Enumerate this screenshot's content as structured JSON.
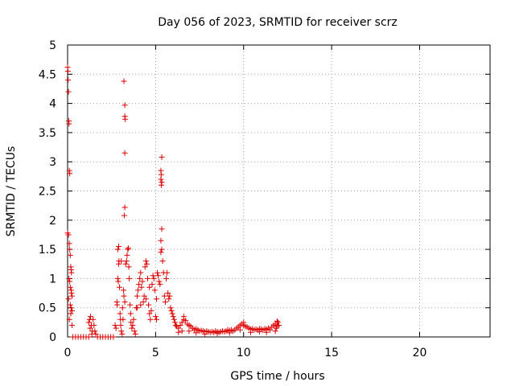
{
  "chart_data": {
    "type": "scatter",
    "title": "Day 056 of 2023, SRMTID for receiver scrz",
    "xlabel": "GPS time / hours",
    "ylabel": "SRMTID / TECUs",
    "xlim": [
      0,
      24
    ],
    "ylim": [
      0,
      5
    ],
    "xticks": [
      0,
      5,
      10,
      15,
      20
    ],
    "xtick_labels": [
      "0",
      "5",
      "10",
      "15",
      "20"
    ],
    "yticks": [
      0,
      0.5,
      1,
      1.5,
      2,
      2.5,
      3,
      3.5,
      4,
      4.5,
      5
    ],
    "ytick_labels": [
      "0",
      "0.5",
      "1",
      "1.5",
      "2",
      "2.5",
      "3",
      "3.5",
      "4",
      "4.5",
      "5"
    ],
    "grid": true,
    "marker": "+",
    "color": "#dd0000",
    "series": [
      {
        "name": "scrz",
        "points": [
          [
            0.0,
            4.62
          ],
          [
            0.02,
            4.55
          ],
          [
            0.03,
            4.4
          ],
          [
            0.05,
            4.2
          ],
          [
            0.07,
            3.7
          ],
          [
            0.08,
            3.65
          ],
          [
            0.1,
            2.85
          ],
          [
            0.12,
            2.8
          ],
          [
            0.0,
            1.78
          ],
          [
            0.05,
            1.75
          ],
          [
            0.1,
            1.6
          ],
          [
            0.12,
            1.5
          ],
          [
            0.15,
            1.4
          ],
          [
            0.18,
            1.2
          ],
          [
            0.2,
            1.15
          ],
          [
            0.22,
            1.1
          ],
          [
            0.08,
            1.0
          ],
          [
            0.12,
            0.95
          ],
          [
            0.15,
            0.85
          ],
          [
            0.2,
            0.8
          ],
          [
            0.22,
            0.75
          ],
          [
            0.25,
            0.7
          ],
          [
            0.05,
            0.65
          ],
          [
            0.15,
            0.55
          ],
          [
            0.2,
            0.5
          ],
          [
            0.25,
            0.45
          ],
          [
            0.18,
            0.4
          ],
          [
            0.25,
            0.2
          ],
          [
            0.1,
            0.3
          ],
          [
            0.3,
            0.0
          ],
          [
            0.45,
            0.0
          ],
          [
            0.6,
            0.0
          ],
          [
            0.75,
            0.0
          ],
          [
            0.9,
            0.0
          ],
          [
            1.05,
            0.0
          ],
          [
            1.2,
            0.0
          ],
          [
            1.2,
            0.25
          ],
          [
            1.25,
            0.3
          ],
          [
            1.3,
            0.35
          ],
          [
            1.28,
            0.15
          ],
          [
            1.35,
            0.2
          ],
          [
            1.4,
            0.1
          ],
          [
            1.45,
            0.3
          ],
          [
            1.5,
            0.2
          ],
          [
            1.55,
            0.1
          ],
          [
            1.6,
            0.05
          ],
          [
            1.38,
            0.05
          ],
          [
            1.7,
            0.0
          ],
          [
            1.85,
            0.0
          ],
          [
            2.0,
            0.0
          ],
          [
            2.15,
            0.0
          ],
          [
            2.3,
            0.0
          ],
          [
            2.45,
            0.0
          ],
          [
            2.6,
            0.0
          ],
          [
            2.7,
            0.2
          ],
          [
            2.75,
            0.15
          ],
          [
            2.8,
            0.6
          ],
          [
            2.82,
            0.55
          ],
          [
            2.85,
            1.0
          ],
          [
            2.88,
            0.95
          ],
          [
            2.9,
            1.25
          ],
          [
            2.92,
            1.3
          ],
          [
            2.85,
            1.5
          ],
          [
            2.9,
            1.55
          ],
          [
            2.95,
            0.85
          ],
          [
            2.98,
            0.4
          ],
          [
            3.0,
            0.3
          ],
          [
            3.02,
            0.2
          ],
          [
            3.05,
            0.1
          ],
          [
            3.1,
            0.05
          ],
          [
            3.12,
            0.5
          ],
          [
            3.15,
            0.3
          ],
          [
            3.18,
            0.8
          ],
          [
            3.2,
            0.7
          ],
          [
            3.25,
            0.6
          ],
          [
            3.05,
            1.3
          ],
          [
            3.2,
            4.38
          ],
          [
            3.25,
            3.97
          ],
          [
            3.25,
            3.78
          ],
          [
            3.27,
            3.73
          ],
          [
            3.25,
            3.15
          ],
          [
            3.25,
            2.22
          ],
          [
            3.22,
            2.08
          ],
          [
            3.3,
            1.25
          ],
          [
            3.35,
            1.3
          ],
          [
            3.38,
            1.4
          ],
          [
            3.42,
            1.5
          ],
          [
            3.45,
            1.52
          ],
          [
            3.48,
            1.2
          ],
          [
            3.5,
            1.0
          ],
          [
            3.55,
            0.55
          ],
          [
            3.58,
            0.4
          ],
          [
            3.6,
            0.25
          ],
          [
            3.65,
            0.15
          ],
          [
            3.7,
            0.2
          ],
          [
            3.75,
            0.3
          ],
          [
            3.8,
            0.1
          ],
          [
            3.85,
            0.05
          ],
          [
            3.9,
            0.5
          ],
          [
            3.95,
            0.7
          ],
          [
            4.0,
            0.8
          ],
          [
            4.05,
            0.9
          ],
          [
            4.1,
            1.0
          ],
          [
            4.15,
            1.1
          ],
          [
            4.2,
            0.85
          ],
          [
            4.25,
            0.95
          ],
          [
            4.3,
            0.6
          ],
          [
            4.35,
            0.7
          ],
          [
            4.4,
            1.2
          ],
          [
            4.45,
            1.3
          ],
          [
            4.5,
            1.25
          ],
          [
            4.55,
            1.0
          ],
          [
            4.6,
            0.55
          ],
          [
            4.65,
            0.4
          ],
          [
            4.7,
            0.3
          ],
          [
            4.75,
            0.45
          ],
          [
            4.8,
            0.9
          ],
          [
            4.85,
            1.05
          ],
          [
            4.9,
            1.0
          ],
          [
            4.95,
            0.8
          ],
          [
            5.0,
            0.35
          ],
          [
            5.05,
            0.3
          ],
          [
            5.1,
            1.1
          ],
          [
            5.15,
            1.05
          ],
          [
            5.2,
            0.95
          ],
          [
            5.25,
            0.9
          ],
          [
            5.3,
            1.45
          ],
          [
            5.35,
            1.5
          ],
          [
            5.4,
            1.3
          ],
          [
            5.45,
            1.1
          ],
          [
            5.5,
            0.7
          ],
          [
            5.55,
            0.6
          ],
          [
            5.6,
            1.0
          ],
          [
            5.65,
            1.1
          ],
          [
            5.7,
            0.75
          ],
          [
            5.75,
            0.65
          ],
          [
            5.8,
            0.7
          ],
          [
            5.85,
            0.5
          ],
          [
            5.9,
            0.45
          ],
          [
            5.95,
            0.4
          ],
          [
            6.0,
            0.35
          ],
          [
            3.95,
            0.5
          ],
          [
            4.15,
            0.55
          ],
          [
            4.45,
            0.65
          ],
          [
            4.65,
            0.85
          ],
          [
            5.05,
            0.65
          ],
          [
            5.35,
            3.08
          ],
          [
            5.3,
            2.85
          ],
          [
            5.32,
            2.78
          ],
          [
            5.3,
            2.7
          ],
          [
            5.35,
            2.65
          ],
          [
            5.32,
            2.6
          ],
          [
            5.35,
            1.85
          ],
          [
            5.3,
            1.65
          ],
          [
            6.05,
            0.3
          ],
          [
            6.1,
            0.25
          ],
          [
            6.15,
            0.2
          ],
          [
            6.2,
            0.18
          ],
          [
            6.3,
            0.15
          ],
          [
            6.4,
            0.2
          ],
          [
            6.5,
            0.25
          ],
          [
            6.6,
            0.3
          ],
          [
            6.7,
            0.28
          ],
          [
            6.8,
            0.22
          ],
          [
            6.9,
            0.2
          ],
          [
            7.0,
            0.18
          ],
          [
            7.1,
            0.15
          ],
          [
            7.2,
            0.12
          ],
          [
            7.3,
            0.14
          ],
          [
            7.4,
            0.12
          ],
          [
            7.5,
            0.1
          ],
          [
            7.6,
            0.11
          ],
          [
            7.7,
            0.1
          ],
          [
            7.8,
            0.09
          ],
          [
            7.9,
            0.1
          ],
          [
            8.0,
            0.09
          ],
          [
            8.1,
            0.08
          ],
          [
            8.2,
            0.09
          ],
          [
            8.3,
            0.08
          ],
          [
            8.4,
            0.1
          ],
          [
            8.5,
            0.09
          ],
          [
            8.6,
            0.08
          ],
          [
            8.7,
            0.09
          ],
          [
            8.8,
            0.1
          ],
          [
            8.9,
            0.09
          ],
          [
            9.0,
            0.1
          ],
          [
            9.1,
            0.12
          ],
          [
            9.2,
            0.11
          ],
          [
            9.3,
            0.12
          ],
          [
            9.4,
            0.1
          ],
          [
            9.5,
            0.12
          ],
          [
            9.6,
            0.15
          ],
          [
            9.7,
            0.17
          ],
          [
            9.8,
            0.2
          ],
          [
            9.9,
            0.22
          ],
          [
            10.0,
            0.2
          ],
          [
            10.1,
            0.18
          ],
          [
            10.2,
            0.17
          ],
          [
            10.3,
            0.15
          ],
          [
            10.4,
            0.13
          ],
          [
            10.5,
            0.14
          ],
          [
            10.6,
            0.12
          ],
          [
            10.7,
            0.13
          ],
          [
            10.8,
            0.12
          ],
          [
            10.9,
            0.14
          ],
          [
            11.0,
            0.13
          ],
          [
            11.1,
            0.12
          ],
          [
            11.2,
            0.14
          ],
          [
            11.3,
            0.13
          ],
          [
            11.4,
            0.15
          ],
          [
            11.5,
            0.12
          ],
          [
            11.6,
            0.17
          ],
          [
            11.7,
            0.2
          ],
          [
            11.8,
            0.22
          ],
          [
            11.85,
            0.15
          ],
          [
            11.9,
            0.18
          ],
          [
            11.95,
            0.25
          ],
          [
            12.0,
            0.2
          ],
          [
            6.3,
            0.08
          ],
          [
            6.5,
            0.1
          ],
          [
            6.9,
            0.1
          ],
          [
            7.3,
            0.07
          ],
          [
            7.8,
            0.05
          ],
          [
            8.5,
            0.06
          ],
          [
            9.2,
            0.07
          ],
          [
            9.8,
            0.12
          ],
          [
            10.4,
            0.08
          ],
          [
            10.9,
            0.09
          ],
          [
            11.3,
            0.08
          ],
          [
            11.8,
            0.1
          ],
          [
            6.6,
            0.35
          ],
          [
            10.0,
            0.25
          ],
          [
            11.9,
            0.27
          ]
        ]
      }
    ]
  }
}
